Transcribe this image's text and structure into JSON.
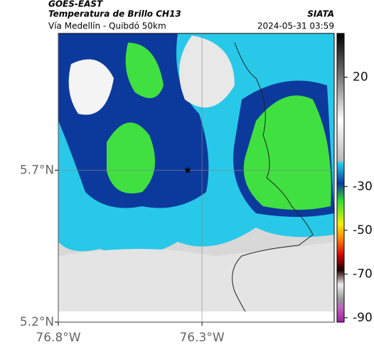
{
  "header": {
    "title": "GOES-EAST",
    "subtitle": "Temperatura de Brillo CH13",
    "source": "SIATA",
    "route": "Vía Medellín - Quibdó 50km",
    "timestamp": "2024-05-31 03:59"
  },
  "map": {
    "xlim": [
      -76.8,
      -75.84
    ],
    "ylim": [
      5.2,
      6.15
    ],
    "xticks": [
      {
        "value": -76.8,
        "label": "76.8°W"
      },
      {
        "value": -76.3,
        "label": "76.3°W"
      }
    ],
    "yticks": [
      {
        "value": 5.2,
        "label": "5.2°N"
      },
      {
        "value": 5.7,
        "label": "5.7°N"
      }
    ],
    "grid": true,
    "marker": {
      "lon": -76.35,
      "lat": 5.7
    }
  },
  "colorbar": {
    "lim": [
      -92,
      40
    ],
    "ticks": [
      20,
      -30,
      -50,
      -70,
      -90
    ]
  }
}
